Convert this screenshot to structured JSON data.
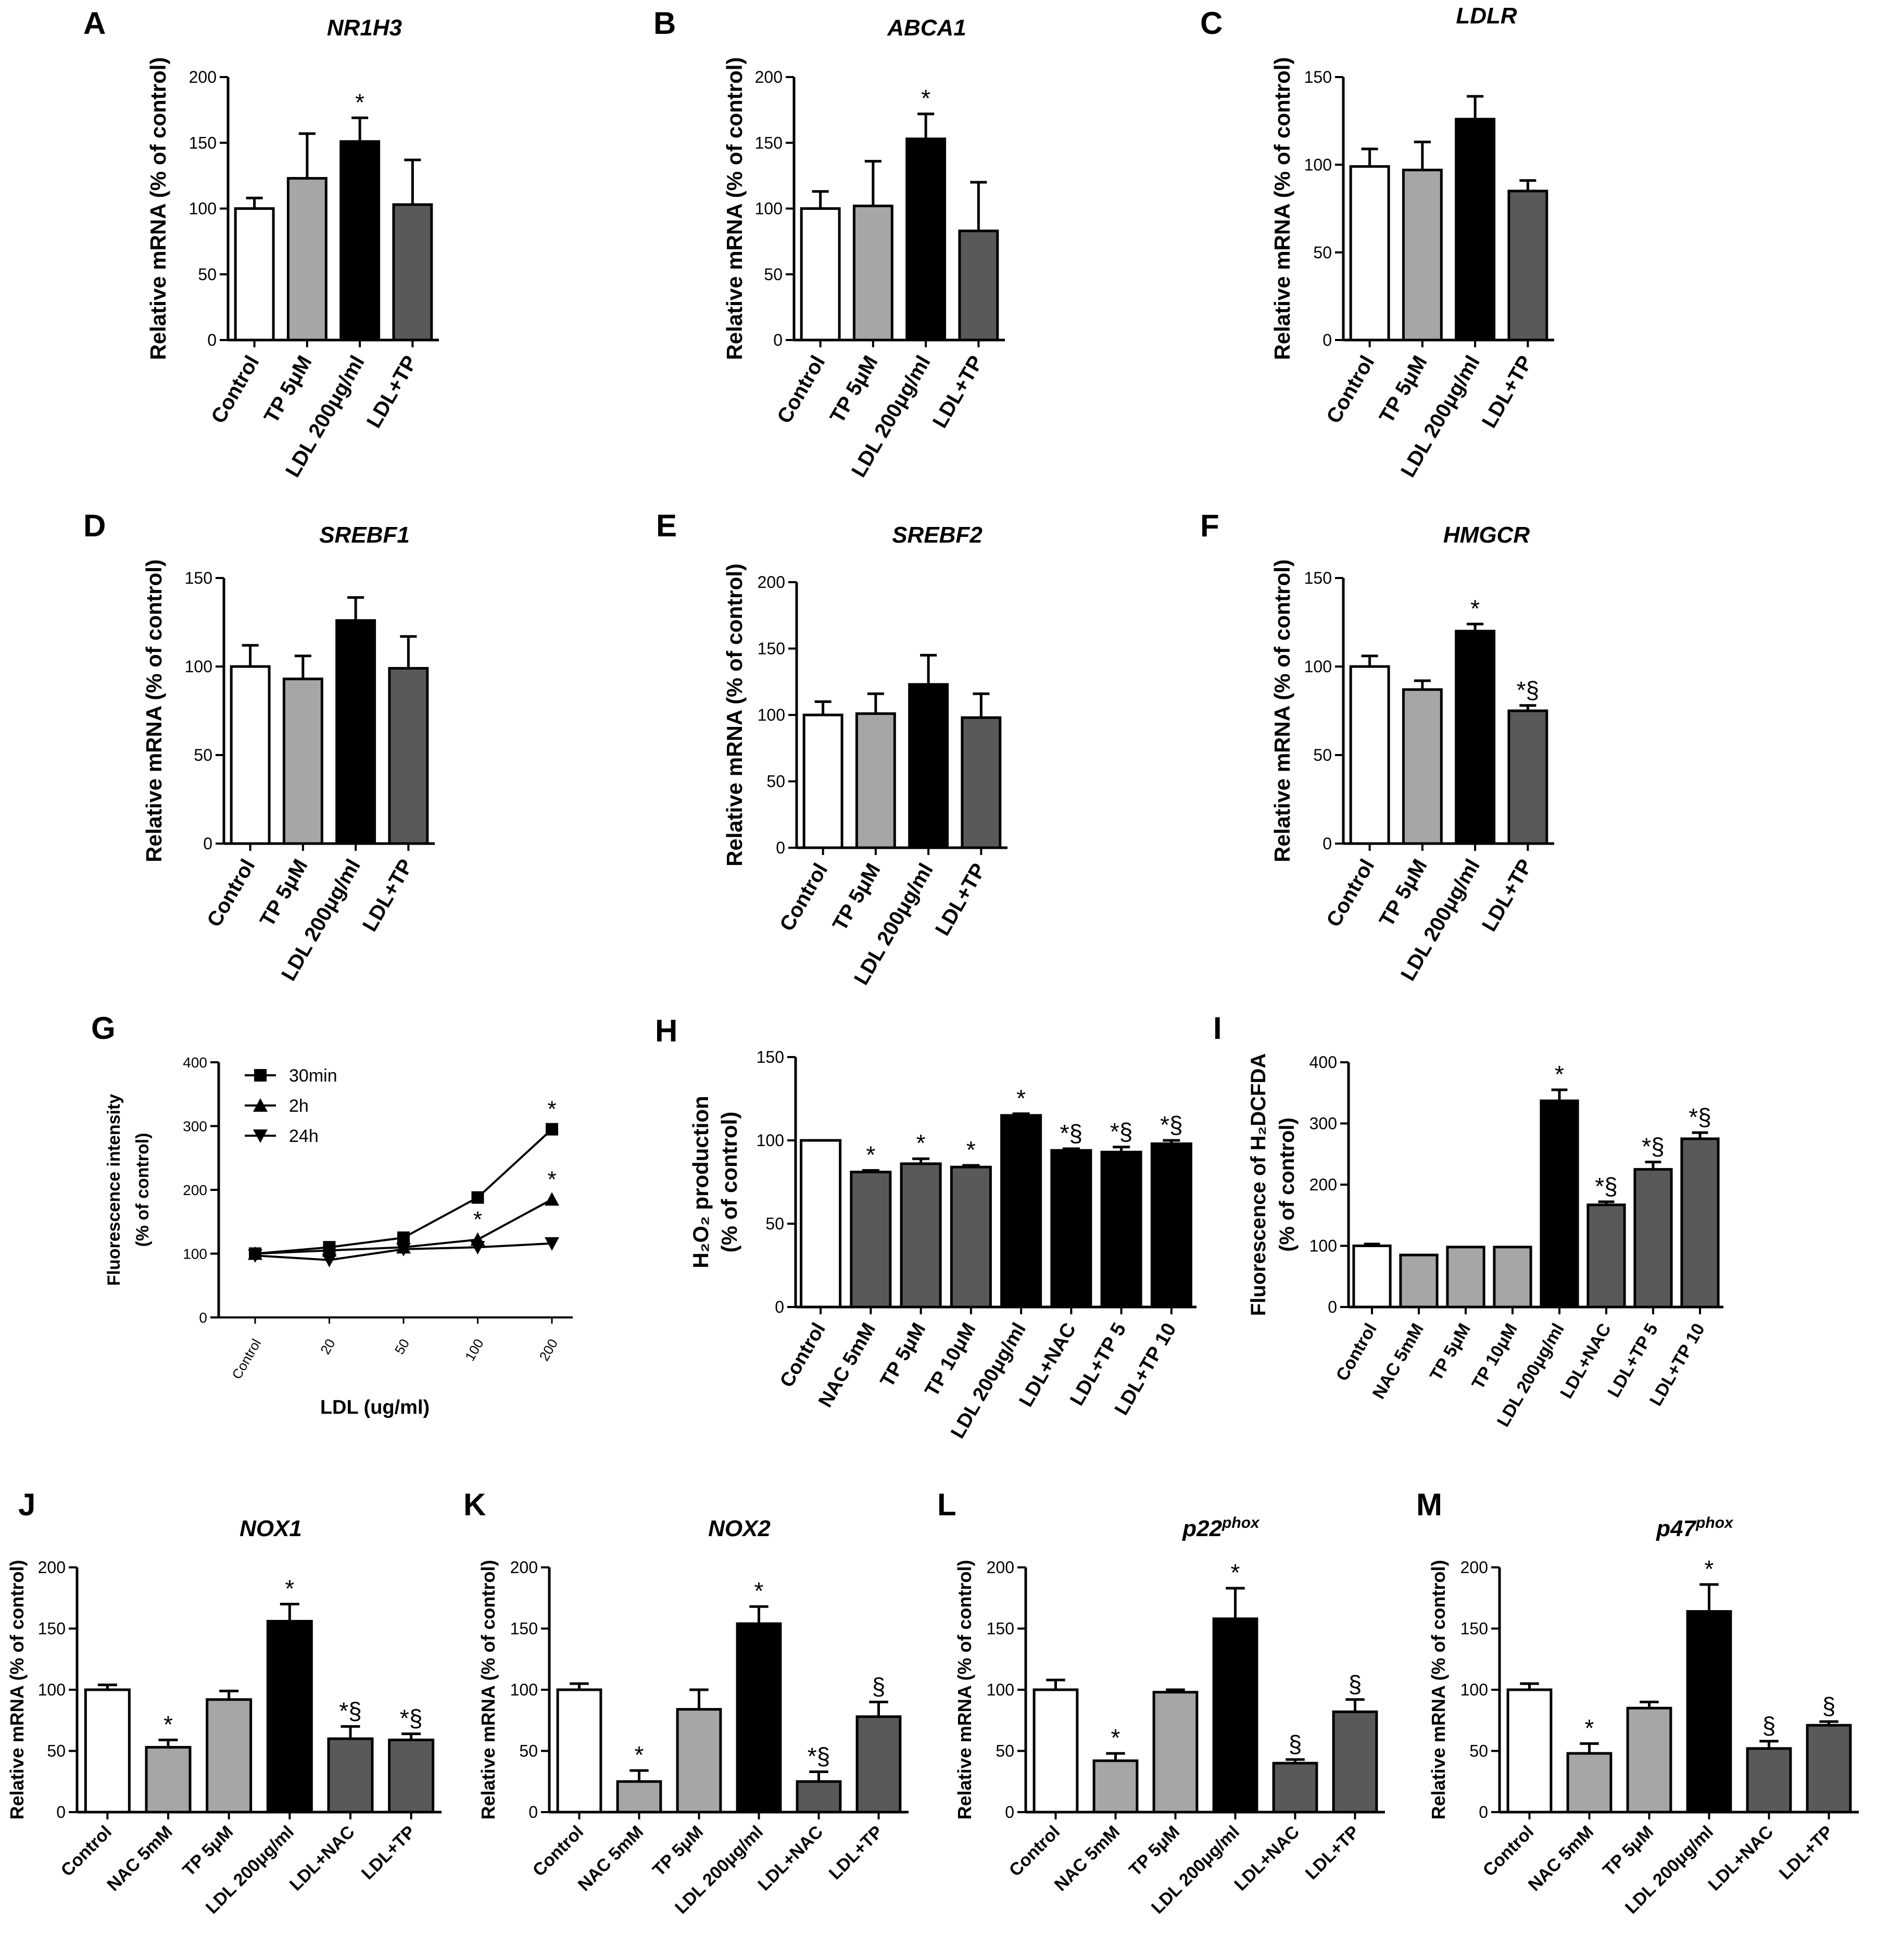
{
  "figure": {
    "chart_data": [
      {
        "id": "A",
        "panel_label": "A",
        "type": "bar",
        "title": "NR1H3",
        "ylabel": "Relative mRNA (% of control)",
        "ylim": [
          0,
          200
        ],
        "yticks": [
          0,
          50,
          100,
          150,
          200
        ],
        "categories": [
          "Control",
          "TP 5μM",
          "LDL 200μg/ml",
          "LDL+TP"
        ],
        "values": [
          100,
          123,
          151,
          103
        ],
        "errors": [
          8,
          34,
          18,
          34
        ],
        "fills": [
          "#ffffff",
          "#a6a6a6",
          "#000000",
          "#595959"
        ],
        "annotations": [
          "",
          "",
          "*",
          ""
        ]
      },
      {
        "id": "B",
        "panel_label": "B",
        "type": "bar",
        "title": "ABCA1",
        "ylabel": "Relative mRNA (% of control)",
        "ylim": [
          0,
          200
        ],
        "yticks": [
          0,
          50,
          100,
          150,
          200
        ],
        "categories": [
          "Control",
          "TP 5μM",
          "LDL 200μg/ml",
          "LDL+TP"
        ],
        "values": [
          100,
          102,
          153,
          83
        ],
        "errors": [
          13,
          34,
          19,
          37
        ],
        "fills": [
          "#ffffff",
          "#a6a6a6",
          "#000000",
          "#595959"
        ],
        "annotations": [
          "",
          "",
          "*",
          ""
        ]
      },
      {
        "id": "C",
        "panel_label": "C",
        "type": "bar",
        "title": "LDLR",
        "ylabel": "Relative mRNA (% of control)",
        "ylim": [
          0,
          150
        ],
        "yticks": [
          0,
          50,
          100,
          150
        ],
        "categories": [
          "Control",
          "TP 5μM",
          "LDL 200μg/ml",
          "LDL+TP"
        ],
        "values": [
          99,
          97,
          126,
          85
        ],
        "errors": [
          10,
          16,
          13,
          6
        ],
        "fills": [
          "#ffffff",
          "#a6a6a6",
          "#000000",
          "#595959"
        ],
        "annotations": [
          "",
          "",
          "",
          ""
        ]
      },
      {
        "id": "D",
        "panel_label": "D",
        "type": "bar",
        "title": "SREBF1",
        "ylabel": "Relative mRNA (% of control)",
        "ylim": [
          0,
          150
        ],
        "yticks": [
          0,
          50,
          100,
          150
        ],
        "categories": [
          "Control",
          "TP 5μM",
          "LDL 200μg/ml",
          "LDL+TP"
        ],
        "values": [
          100,
          93,
          126,
          99
        ],
        "errors": [
          12,
          13,
          13,
          18
        ],
        "fills": [
          "#ffffff",
          "#a6a6a6",
          "#000000",
          "#595959"
        ],
        "annotations": [
          "",
          "",
          "",
          ""
        ]
      },
      {
        "id": "E",
        "panel_label": "E",
        "type": "bar",
        "title": "SREBF2",
        "ylabel": "Relative mRNA (% of control)",
        "ylim": [
          0,
          200
        ],
        "yticks": [
          0,
          50,
          100,
          150,
          200
        ],
        "categories": [
          "Control",
          "TP 5μM",
          "LDL 200μg/ml",
          "LDL+TP"
        ],
        "values": [
          100,
          101,
          123,
          98
        ],
        "errors": [
          10,
          15,
          22,
          18
        ],
        "fills": [
          "#ffffff",
          "#a6a6a6",
          "#000000",
          "#595959"
        ],
        "annotations": [
          "",
          "",
          "",
          ""
        ]
      },
      {
        "id": "F",
        "panel_label": "F",
        "type": "bar",
        "title": "HMGCR",
        "ylabel": "Relative mRNA (% of control)",
        "ylim": [
          0,
          150
        ],
        "yticks": [
          0,
          50,
          100,
          150
        ],
        "categories": [
          "Control",
          "TP 5μM",
          "LDL 200μg/ml",
          "LDL+TP"
        ],
        "values": [
          100,
          87,
          120,
          75
        ],
        "errors": [
          6,
          5,
          4,
          3
        ],
        "fills": [
          "#ffffff",
          "#a6a6a6",
          "#000000",
          "#595959"
        ],
        "annotations": [
          "",
          "",
          "*",
          "*§"
        ]
      },
      {
        "id": "G",
        "panel_label": "G",
        "type": "line",
        "title": "",
        "ylabel_lines": [
          "Fluorescence intensity",
          "(% of control)"
        ],
        "xlabel": "LDL (ug/ml)",
        "ylim": [
          0,
          400
        ],
        "yticks": [
          0,
          100,
          200,
          300,
          400
        ],
        "categories": [
          "Control",
          "20",
          "50",
          "100",
          "200"
        ],
        "series": [
          {
            "name": "30min",
            "marker": "square",
            "values": [
              100,
              110,
              125,
              188,
              295
            ],
            "annotations": [
              "",
              "",
              "",
              "",
              "*"
            ]
          },
          {
            "name": "2h",
            "marker": "triangle-up",
            "values": [
              100,
              105,
              110,
              122,
              185
            ],
            "annotations": [
              "",
              "",
              "",
              "*",
              "*"
            ]
          },
          {
            "name": "24h",
            "marker": "triangle-down",
            "values": [
              97,
              90,
              107,
              110,
              116
            ],
            "annotations": [
              "",
              "",
              "",
              "",
              ""
            ]
          }
        ]
      },
      {
        "id": "H",
        "panel_label": "H",
        "type": "bar",
        "title": "",
        "ylabel_lines": [
          "H₂O₂ production",
          "(% of control)"
        ],
        "ylim": [
          0,
          150
        ],
        "yticks": [
          0,
          50,
          100,
          150
        ],
        "categories": [
          "Control",
          "NAC 5mM",
          "TP 5μM",
          "TP 10μM",
          "LDL 200μg/ml",
          "LDL+NAC",
          "LDL+TP 5",
          "LDL+TP 10"
        ],
        "values": [
          100,
          81,
          86,
          84,
          115,
          94,
          93,
          98
        ],
        "errors": [
          0,
          1,
          3,
          1,
          1,
          1,
          3,
          2
        ],
        "fills": [
          "#ffffff",
          "#595959",
          "#595959",
          "#595959",
          "#000000",
          "#000000",
          "#000000",
          "#000000"
        ],
        "annotations": [
          "",
          "*",
          "*",
          "*",
          "*",
          "*§",
          "*§",
          "*§"
        ]
      },
      {
        "id": "I",
        "panel_label": "I",
        "type": "bar",
        "title": "",
        "ylabel_lines": [
          "Fluorescence of H₂DCFDA",
          "(% of control)"
        ],
        "ylim": [
          0,
          400
        ],
        "yticks": [
          0,
          100,
          200,
          300,
          400
        ],
        "categories": [
          "Control",
          "NAC 5mM",
          "TP 5μM",
          "TP 10μM",
          "LDL 200μg/ml",
          "LDL+NAC",
          "LDL+TP 5",
          "LDL+TP 10"
        ],
        "values": [
          100,
          85,
          98,
          98,
          337,
          167,
          225,
          275
        ],
        "errors": [
          3,
          0,
          0,
          0,
          18,
          5,
          12,
          10
        ],
        "fills": [
          "#ffffff",
          "#a6a6a6",
          "#a6a6a6",
          "#a6a6a6",
          "#000000",
          "#595959",
          "#595959",
          "#595959"
        ],
        "annotations": [
          "",
          "",
          "",
          "",
          "*",
          "*§",
          "*§",
          "*§"
        ]
      },
      {
        "id": "J",
        "panel_label": "J",
        "type": "bar",
        "title": "NOX1",
        "ylabel": "Relative mRNA (% of control)",
        "ylim": [
          0,
          200
        ],
        "yticks": [
          0,
          50,
          100,
          150,
          200
        ],
        "categories": [
          "Control",
          "NAC 5mM",
          "TP 5μM",
          "LDL 200μg/ml",
          "LDL+NAC",
          "LDL+TP"
        ],
        "values": [
          100,
          53,
          92,
          156,
          60,
          59
        ],
        "errors": [
          4,
          6,
          7,
          14,
          10,
          5
        ],
        "fills": [
          "#ffffff",
          "#a6a6a6",
          "#a6a6a6",
          "#000000",
          "#595959",
          "#595959"
        ],
        "annotations": [
          "",
          "*",
          "",
          "*",
          "*§",
          "*§"
        ]
      },
      {
        "id": "K",
        "panel_label": "K",
        "type": "bar",
        "title": "NOX2",
        "ylabel": "Relative mRNA (% of control)",
        "ylim": [
          0,
          200
        ],
        "yticks": [
          0,
          50,
          100,
          150,
          200
        ],
        "categories": [
          "Control",
          "NAC 5mM",
          "TP 5μM",
          "LDL 200μg/ml",
          "LDL+NAC",
          "LDL+TP"
        ],
        "values": [
          100,
          25,
          84,
          154,
          25,
          78
        ],
        "errors": [
          5,
          9,
          16,
          14,
          8,
          12
        ],
        "fills": [
          "#ffffff",
          "#a6a6a6",
          "#a6a6a6",
          "#000000",
          "#595959",
          "#595959"
        ],
        "annotations": [
          "",
          "*",
          "",
          "*",
          "*§",
          "§"
        ]
      },
      {
        "id": "L",
        "panel_label": "L",
        "type": "bar",
        "title": "p22",
        "title_sup": "phox",
        "ylabel": "Relative mRNA (% of control)",
        "ylim": [
          0,
          200
        ],
        "yticks": [
          0,
          50,
          100,
          150,
          200
        ],
        "categories": [
          "Control",
          "NAC 5mM",
          "TP 5μM",
          "LDL 200μg/ml",
          "LDL+NAC",
          "LDL+TP"
        ],
        "values": [
          100,
          42,
          98,
          158,
          40,
          82
        ],
        "errors": [
          8,
          6,
          2,
          25,
          3,
          10
        ],
        "fills": [
          "#ffffff",
          "#a6a6a6",
          "#a6a6a6",
          "#000000",
          "#595959",
          "#595959"
        ],
        "annotations": [
          "",
          "*",
          "",
          "*",
          "§",
          "§"
        ]
      },
      {
        "id": "M",
        "panel_label": "M",
        "type": "bar",
        "title": "p47",
        "title_sup": "phox",
        "ylabel": "Relative mRNA (% of control)",
        "ylim": [
          0,
          200
        ],
        "yticks": [
          0,
          50,
          100,
          150,
          200
        ],
        "categories": [
          "Control",
          "NAC 5mM",
          "TP 5μM",
          "LDL 200μg/ml",
          "LDL+NAC",
          "LDL+TP"
        ],
        "values": [
          100,
          48,
          85,
          164,
          52,
          71
        ],
        "errors": [
          5,
          8,
          5,
          22,
          6,
          3
        ],
        "fills": [
          "#ffffff",
          "#a6a6a6",
          "#a6a6a6",
          "#000000",
          "#595959",
          "#595959"
        ],
        "annotations": [
          "",
          "*",
          "",
          "*",
          "§",
          "§"
        ]
      }
    ]
  }
}
